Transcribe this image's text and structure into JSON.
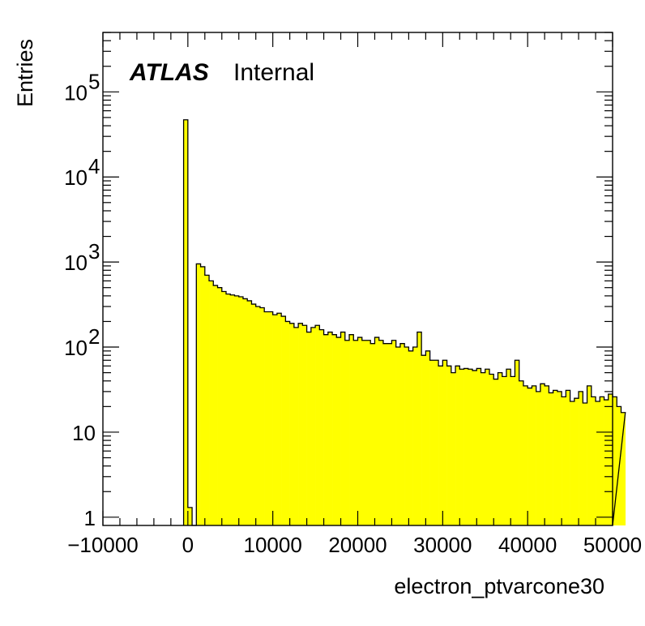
{
  "chart_data": {
    "type": "bar",
    "title": "",
    "label": {
      "experiment": "ATLAS",
      "status": "Internal"
    },
    "xlabel": "electron_ptvarcone30",
    "ylabel": "Entries",
    "xlim": [
      -10000,
      50000
    ],
    "ylim": [
      0.8,
      500000
    ],
    "yscale": "log",
    "grid": false,
    "fill_color": "#ffff00",
    "line_color": "#000000",
    "x_ticks": [
      {
        "value": -10000,
        "label": "−10000"
      },
      {
        "value": 0,
        "label": "0"
      },
      {
        "value": 10000,
        "label": "10000"
      },
      {
        "value": 20000,
        "label": "20000"
      },
      {
        "value": 30000,
        "label": "30000"
      },
      {
        "value": 40000,
        "label": "40000"
      },
      {
        "value": 50000,
        "label": "50000"
      }
    ],
    "y_ticks": [
      {
        "value": 1,
        "base": "1",
        "exp": ""
      },
      {
        "value": 10,
        "base": "10",
        "exp": ""
      },
      {
        "value": 100,
        "base": "10",
        "exp": "2"
      },
      {
        "value": 1000,
        "base": "10",
        "exp": "3"
      },
      {
        "value": 10000,
        "base": "10",
        "exp": "4"
      },
      {
        "value": 100000,
        "base": "10",
        "exp": "5"
      }
    ],
    "bin_width": 500,
    "bin_start": -500,
    "values": [
      47000,
      1.3,
      0,
      950,
      880,
      700,
      600,
      530,
      500,
      450,
      420,
      410,
      400,
      390,
      370,
      350,
      320,
      300,
      290,
      260,
      260,
      240,
      250,
      230,
      200,
      190,
      170,
      190,
      180,
      150,
      170,
      180,
      160,
      140,
      150,
      140,
      130,
      150,
      120,
      140,
      120,
      130,
      120,
      120,
      110,
      130,
      120,
      110,
      110,
      120,
      100,
      110,
      100,
      90,
      100,
      150,
      80,
      90,
      70,
      70,
      60,
      70,
      60,
      50,
      60,
      55,
      56,
      55,
      53,
      56,
      50,
      55,
      48,
      42,
      50,
      45,
      55,
      45,
      70,
      40,
      35,
      33,
      35,
      30,
      37,
      35,
      29,
      31,
      30,
      26,
      31,
      23,
      25,
      30,
      22,
      35,
      26,
      23,
      26,
      24,
      28,
      26,
      20,
      17
    ]
  }
}
